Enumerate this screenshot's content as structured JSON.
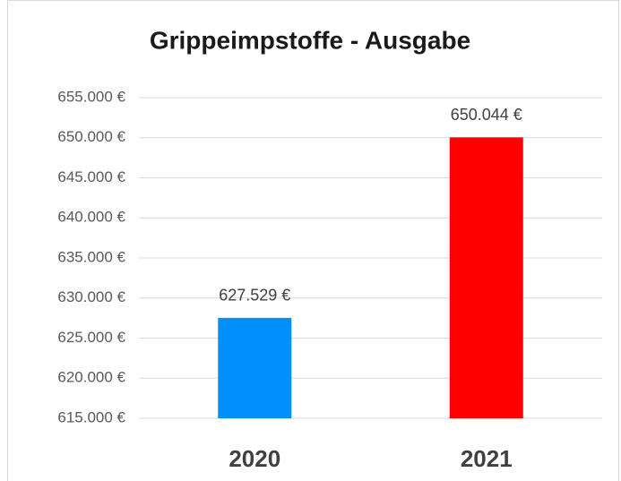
{
  "chart_data": {
    "type": "bar",
    "title": "Grippeimpstoffe - Ausgabe",
    "categories": [
      "2020",
      "2021"
    ],
    "values": [
      627529,
      650044
    ],
    "value_labels": [
      "627.529 €",
      "650.044 €"
    ],
    "colors": [
      "#008ffb",
      "#ff0000"
    ],
    "ylim": [
      615000,
      655000
    ],
    "yticks": [
      {
        "value": 615000,
        "label": "615.000 €"
      },
      {
        "value": 620000,
        "label": "620.000 €"
      },
      {
        "value": 625000,
        "label": "625.000 €"
      },
      {
        "value": 630000,
        "label": "630.000 €"
      },
      {
        "value": 635000,
        "label": "635.000 €"
      },
      {
        "value": 640000,
        "label": "640.000 €"
      },
      {
        "value": 645000,
        "label": "645.000 €"
      },
      {
        "value": 650000,
        "label": "650.000 €"
      },
      {
        "value": 655000,
        "label": "655.000 €"
      }
    ],
    "grid": true
  }
}
